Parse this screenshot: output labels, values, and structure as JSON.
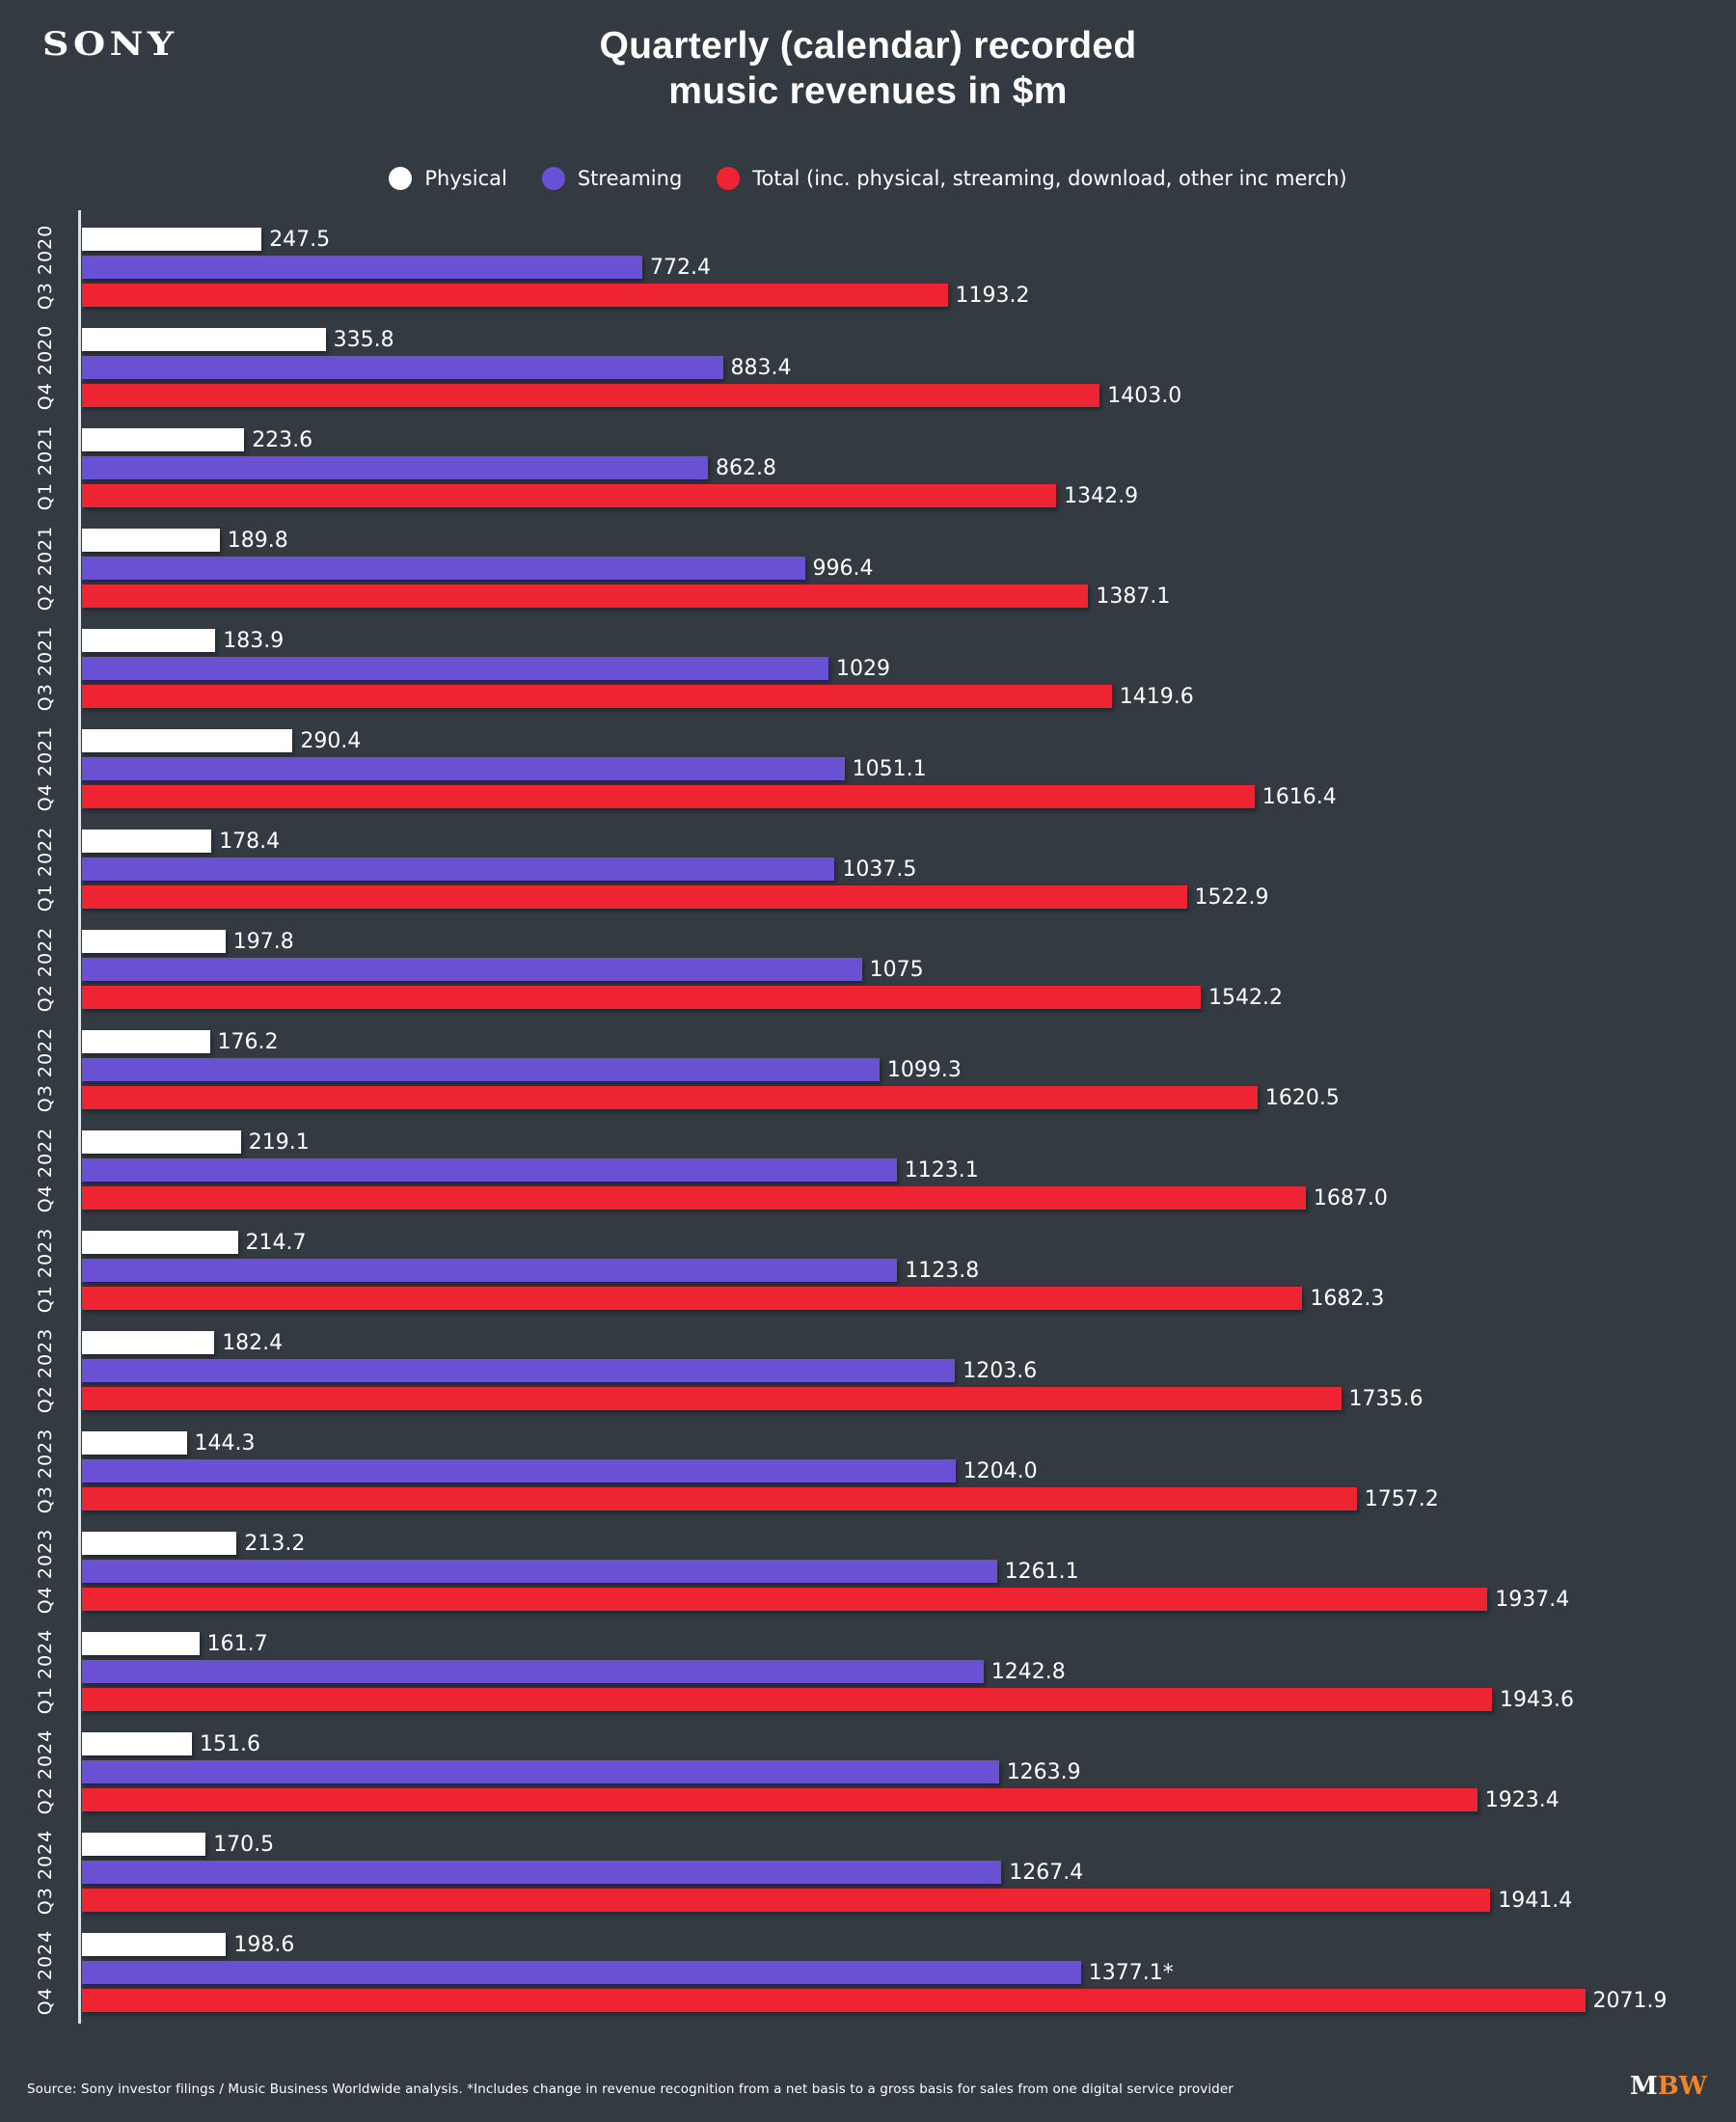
{
  "header": {
    "brand": "SONY",
    "title_line1": "Quarterly (calendar) recorded",
    "title_line2": "music revenues in $m"
  },
  "chart_data": {
    "type": "bar",
    "orientation": "horizontal",
    "title": "Quarterly (calendar) recorded music revenues in $m",
    "grid": false,
    "legend_position": "top",
    "background_color": "#333a42",
    "xlim": [
      0,
      2280
    ],
    "categories": [
      "Q3 2020",
      "Q4 2020",
      "Q1 2021",
      "Q2 2021",
      "Q3 2021",
      "Q4 2021",
      "Q1 2022",
      "Q2 2022",
      "Q3 2022",
      "Q4 2022",
      "Q1 2023",
      "Q2 2023",
      "Q3 2023",
      "Q4 2023",
      "Q1 2024",
      "Q2 2024",
      "Q3 2024",
      "Q4 2024"
    ],
    "series": [
      {
        "key": "physical",
        "name": "Physical",
        "color": "#ffffff",
        "values": [
          247.5,
          335.8,
          223.6,
          189.8,
          183.9,
          290.4,
          178.4,
          197.8,
          176.2,
          219.1,
          214.7,
          182.4,
          144.3,
          213.2,
          161.7,
          151.6,
          170.5,
          198.6
        ],
        "labels": [
          "247.5",
          "335.8",
          "223.6",
          "189.8",
          "183.9",
          "290.4",
          "178.4",
          "197.8",
          "176.2",
          "219.1",
          "214.7",
          "182.4",
          "144.3",
          "213.2",
          "161.7",
          "151.6",
          "170.5",
          "198.6"
        ]
      },
      {
        "key": "streaming",
        "name": "Streaming",
        "color": "#6a50d2",
        "values": [
          772.4,
          883.4,
          862.8,
          996.4,
          1029,
          1051.1,
          1037.5,
          1075,
          1099.3,
          1123.1,
          1123.8,
          1203.6,
          1204.0,
          1261.1,
          1242.8,
          1263.9,
          1267.4,
          1377.1
        ],
        "labels": [
          "772.4",
          "883.4",
          "862.8",
          "996.4",
          "1029",
          "1051.1",
          "1037.5",
          "1075",
          "1099.3",
          "1123.1",
          "1123.8",
          "1203.6",
          "1204.0",
          "1261.1",
          "1242.8",
          "1263.9",
          "1267.4",
          "1377.1*"
        ]
      },
      {
        "key": "total",
        "name": "Total (inc. physical, streaming, download, other inc merch)",
        "color": "#ee2433",
        "values": [
          1193.2,
          1403.0,
          1342.9,
          1387.1,
          1419.6,
          1616.4,
          1522.9,
          1542.2,
          1620.5,
          1687.0,
          1682.3,
          1735.6,
          1757.2,
          1937.4,
          1943.6,
          1923.4,
          1941.4,
          2071.9
        ],
        "labels": [
          "1193.2",
          "1403.0",
          "1342.9",
          "1387.1",
          "1419.6",
          "1616.4",
          "1522.9",
          "1542.2",
          "1620.5",
          "1687.0",
          "1682.3",
          "1735.6",
          "1757.2",
          "1937.4",
          "1943.6",
          "1923.4",
          "1941.4",
          "2071.9"
        ]
      }
    ]
  },
  "footer": {
    "source": "Source: Sony investor filings / Music Business Worldwide analysis. *Includes change in revenue recognition from a net basis to a gross basis for sales from one digital service provider",
    "logo_m": "M",
    "logo_bw": "BW"
  }
}
